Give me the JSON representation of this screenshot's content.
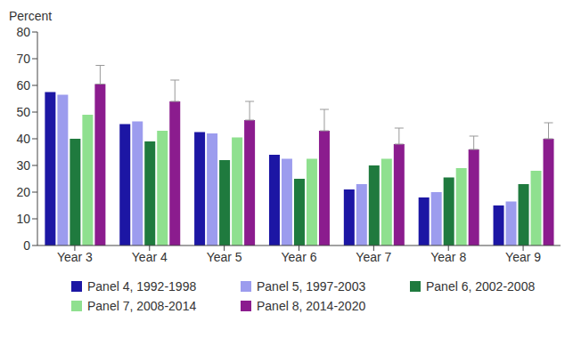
{
  "chart_data": {
    "type": "bar",
    "y_label": "Percent",
    "categories": [
      "Year 3",
      "Year 4",
      "Year 5",
      "Year 6",
      "Year 7",
      "Year 8",
      "Year 9"
    ],
    "series": [
      {
        "name": "Panel 4, 1992-1998",
        "color": "#1c16a4",
        "values": [
          57.5,
          45.5,
          42.5,
          34,
          21,
          18,
          15
        ]
      },
      {
        "name": "Panel 5, 1997-2003",
        "color": "#9c9cee",
        "values": [
          56.5,
          46.5,
          42,
          32.5,
          23,
          20,
          16.5
        ]
      },
      {
        "name": "Panel 6, 2002-2008",
        "color": "#1f7a3e",
        "values": [
          40,
          39,
          32,
          25,
          30,
          25.5,
          23
        ]
      },
      {
        "name": "Panel 7, 2008-2014",
        "color": "#8fe08f",
        "values": [
          49,
          43,
          40.5,
          32.5,
          32.5,
          29,
          28
        ]
      },
      {
        "name": "Panel 8, 2014-2020",
        "color": "#8b1c8e",
        "values": [
          60.5,
          54,
          47,
          43,
          38,
          36,
          40
        ],
        "error_upper": [
          7,
          8,
          7,
          8,
          6,
          5,
          6
        ]
      }
    ],
    "ylim": [
      0,
      80
    ],
    "yticks": [
      0,
      10,
      20,
      30,
      40,
      50,
      60,
      70,
      80
    ],
    "grid": false,
    "legend": "bottom"
  }
}
